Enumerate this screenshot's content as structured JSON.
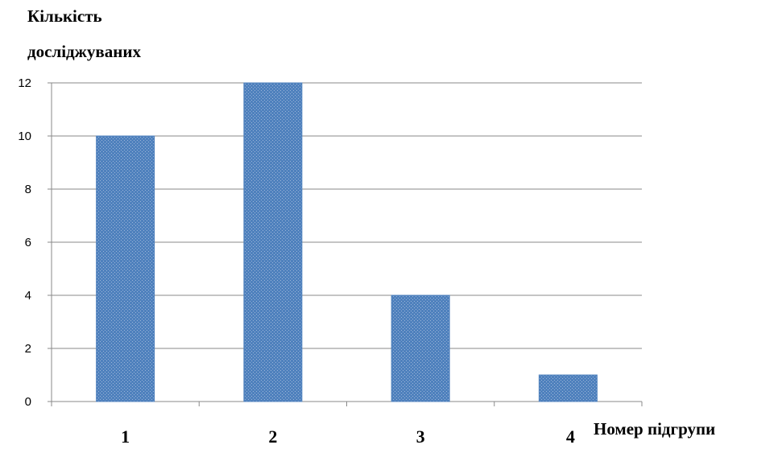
{
  "chart_data": {
    "type": "bar",
    "ylabel_lines": [
      "Кількість",
      "досліджуваних"
    ],
    "xlabel": "Номер підгрупи",
    "categories": [
      "1",
      "2",
      "3",
      "4"
    ],
    "values": [
      10,
      12,
      4,
      1
    ],
    "ylim": [
      0,
      12
    ],
    "yticks": [
      "0",
      "2",
      "4",
      "6",
      "8",
      "10",
      "12"
    ],
    "grid": true,
    "bar_color": "#4f81bd"
  }
}
